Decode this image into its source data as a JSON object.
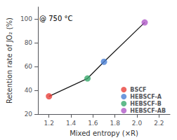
{
  "chart_data": {
    "type": "scatter",
    "annotation": "@ 750 °C",
    "xlabel": "Mixed entropy (×R)",
    "ylabel": "Retention rate of JO₂ (%)",
    "series": [
      {
        "type": "line",
        "color": "#1a1a1a",
        "x": [
          1.2,
          1.55,
          1.7,
          2.07
        ],
        "values": [
          35,
          50,
          64,
          97
        ]
      },
      {
        "name": "BSCF",
        "color": "#e8403a",
        "x": [
          1.2
        ],
        "values": [
          35
        ]
      },
      {
        "name": "HEBSCF-A",
        "color": "#4a7fd4",
        "x": [
          1.7
        ],
        "values": [
          64
        ]
      },
      {
        "name": "HEBSCF-B",
        "color": "#3aaa6e",
        "x": [
          1.55
        ],
        "values": [
          50
        ]
      },
      {
        "name": "HEBSCF-AB",
        "color": "#b05ac8",
        "x": [
          2.07
        ],
        "values": [
          97
        ]
      }
    ],
    "marker": "circle",
    "xlim": [
      1.1,
      2.3
    ],
    "ylim": [
      20,
      110
    ],
    "xticks": [
      1.2,
      1.4,
      1.6,
      1.8,
      {
        "value": 2,
        "label": "2.0"
      },
      2.2
    ],
    "yticks": [
      20,
      40,
      60,
      80,
      100
    ],
    "grid": false,
    "legend": "lower right"
  }
}
